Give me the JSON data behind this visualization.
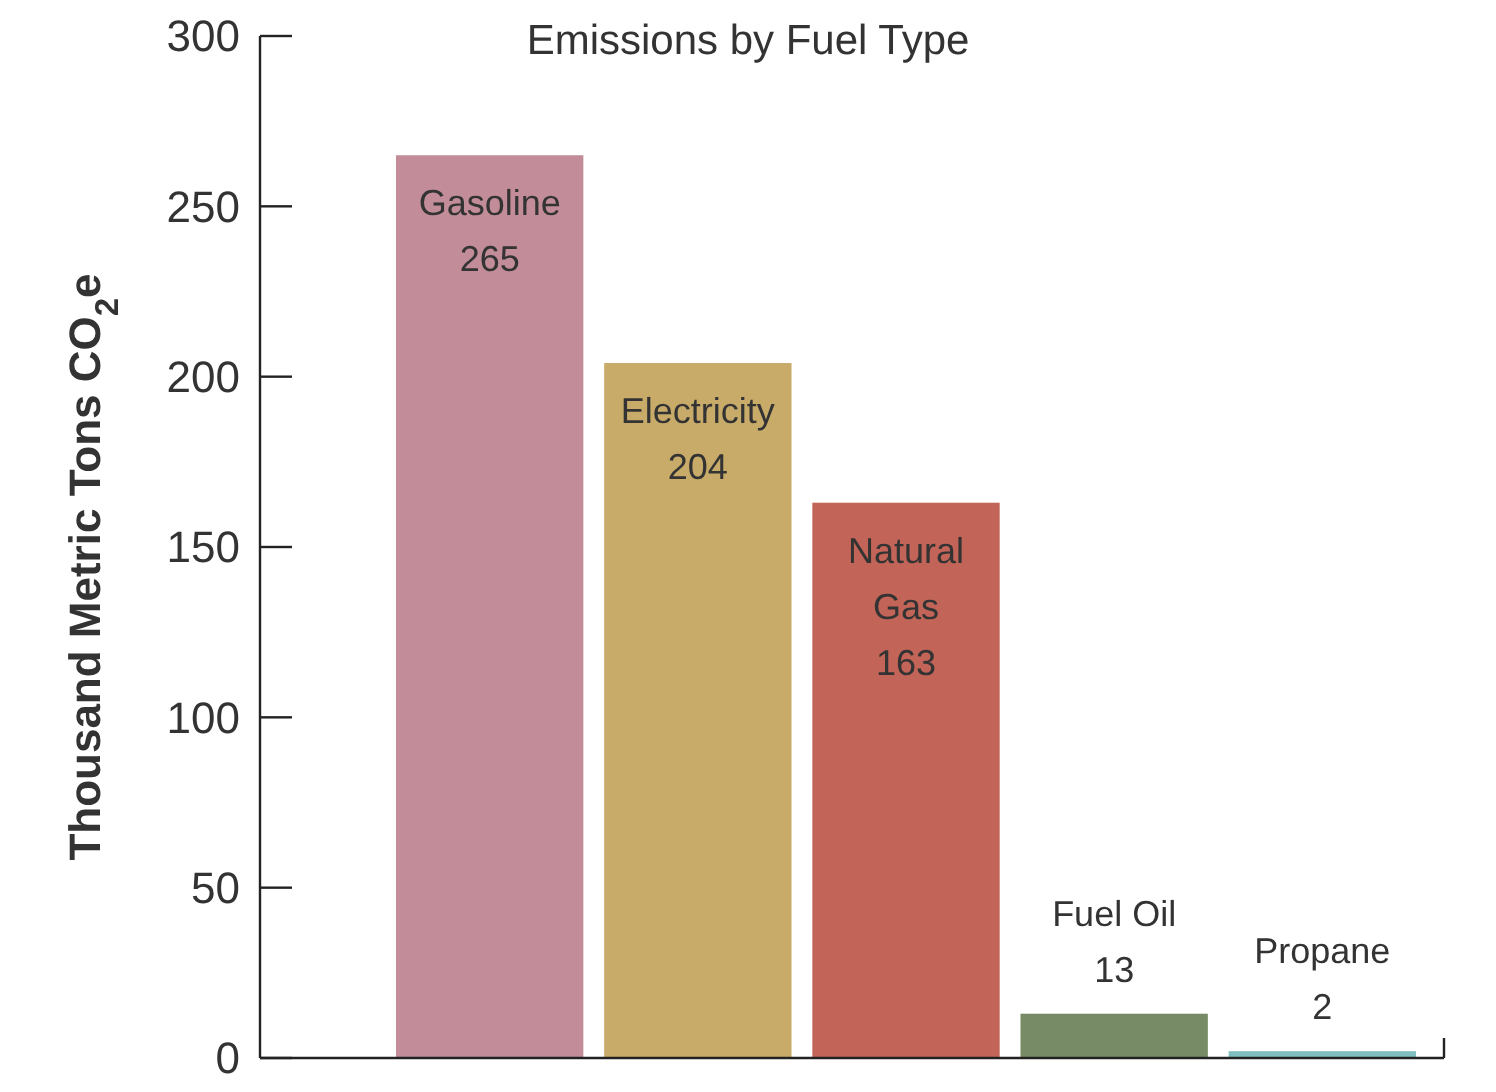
{
  "chart_data": {
    "type": "bar",
    "title": "Emissions by Fuel Type",
    "ylabel": "Thousand Metric Tons CO$_{2}$e",
    "categories": [
      "Gasoline",
      "Electricity",
      "Natural Gas",
      "Fuel Oil",
      "Propane"
    ],
    "values": [
      265,
      204,
      163,
      13,
      2
    ],
    "colors": [
      "#c28c99",
      "#c9ab69",
      "#c26457",
      "#778c66",
      "#7fbfbf"
    ],
    "ylim": [
      0,
      300
    ],
    "yticks": [
      0,
      50,
      100,
      150,
      200,
      250,
      300
    ],
    "grid": false,
    "data_labels": true
  }
}
